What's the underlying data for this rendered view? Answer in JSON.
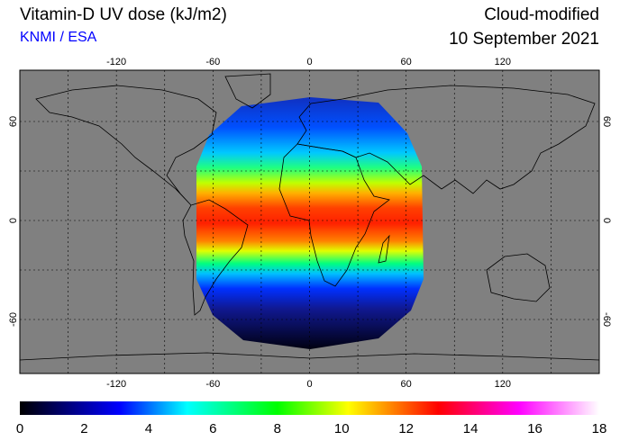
{
  "header": {
    "title": "Vitamin-D UV dose (kJ/m2)",
    "source": "KNMI / ESA",
    "mode": "Cloud-modified",
    "date": "10 September 2021"
  },
  "map": {
    "background_color": "#808080",
    "lon_ticks": [
      "-120",
      "-60",
      "0",
      "60",
      "120"
    ],
    "lon_tick_values": [
      -120,
      -60,
      0,
      60,
      120
    ],
    "lat_ticks": [
      "60",
      "0",
      "-60"
    ],
    "lat_tick_values": [
      60,
      0,
      -60
    ]
  },
  "colorbar": {
    "min": 0,
    "max": 18,
    "labels": [
      "0",
      "2",
      "4",
      "6",
      "8",
      "10",
      "12",
      "14",
      "16",
      "18"
    ],
    "stops": [
      {
        "value": 0,
        "color": "#000000"
      },
      {
        "value": 3.1,
        "color": "#0000ff"
      },
      {
        "value": 5.2,
        "color": "#00ffff"
      },
      {
        "value": 8,
        "color": "#00ff00"
      },
      {
        "value": 10.2,
        "color": "#ffff00"
      },
      {
        "value": 13,
        "color": "#ff0000"
      },
      {
        "value": 15.5,
        "color": "#ff00ff"
      },
      {
        "value": 18,
        "color": "#ffffff"
      }
    ]
  }
}
